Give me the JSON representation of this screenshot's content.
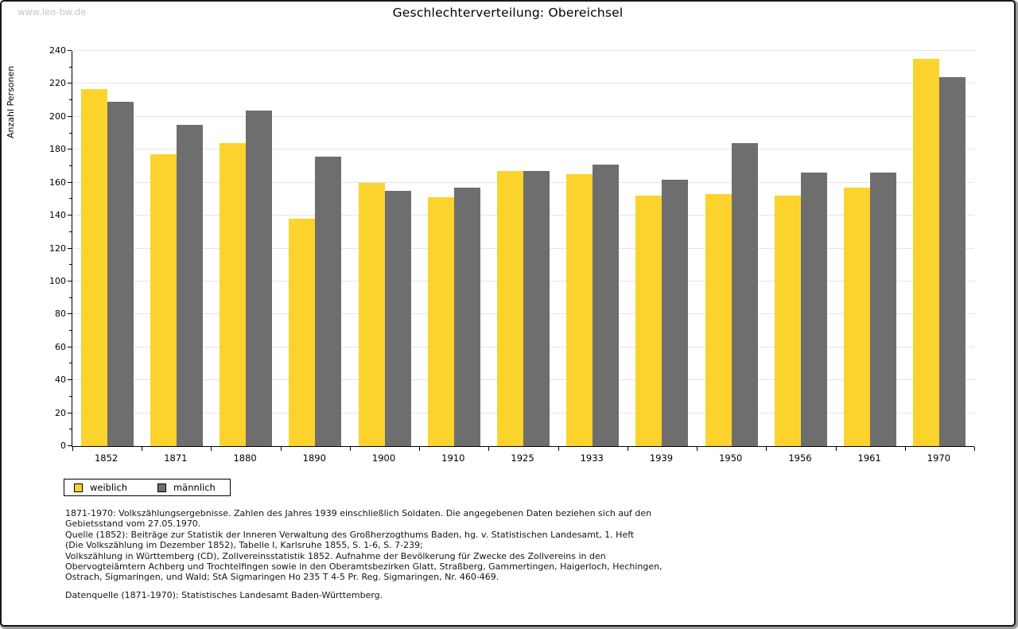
{
  "watermark": "www.leo-bw.de",
  "title": "Geschlechterverteilung: Obereichsel",
  "chart_data": {
    "type": "bar",
    "title": "Geschlechterverteilung: Obereichsel",
    "categories": [
      "1852",
      "1871",
      "1880",
      "1890",
      "1900",
      "1910",
      "1925",
      "1933",
      "1939",
      "1950",
      "1956",
      "1961",
      "1970"
    ],
    "series": [
      {
        "name": "weiblich",
        "color": "#fcd32d",
        "values": [
          217,
          177,
          184,
          138,
          160,
          151,
          167,
          165,
          152,
          153,
          152,
          157,
          235
        ]
      },
      {
        "name": "männlich",
        "color": "#6e6e6e",
        "values": [
          209,
          195,
          204,
          176,
          155,
          157,
          167,
          171,
          162,
          184,
          166,
          166,
          224
        ]
      }
    ],
    "xlabel": "",
    "ylabel": "Anzahl Personen",
    "ylim": [
      0,
      240
    ],
    "ytick_step": 20,
    "yminor_step": 10,
    "grid": true,
    "legend_position": "bottom-left"
  },
  "legend": [
    {
      "label": "weiblich",
      "color": "#fcd32d"
    },
    {
      "label": "männlich",
      "color": "#6e6e6e"
    }
  ],
  "footnotes": [
    "1871-1970: Volkszählungsergebnisse. Zahlen des Jahres 1939 einschließlich Soldaten. Die angegebenen Daten beziehen sich auf den",
    "Gebietsstand vom 27.05.1970.",
    "Quelle (1852): Beiträge zur Statistik der Inneren Verwaltung des Großherzogthums Baden, hg. v. Statistischen Landesamt, 1. Heft",
    "(Die Volkszählung im Dezember 1852), Tabelle I, Karlsruhe 1855, S. 1-6, S. 7-239;",
    "Volkszählung in Württemberg (CD), Zollvereinsstatistik 1852. Aufnahme der Bevölkerung für Zwecke des Zollvereins in den",
    "Obervogteiämtern Achberg und Trochtelfingen sowie in den Oberamtsbezirken Glatt, Straßberg, Gammertingen, Haigerloch, Hechingen,",
    "Ostrach, Sigmaringen, und Wald; StA Sigmaringen Ho 235 T 4-5 Pr. Reg. Sigmaringen, Nr. 460-469."
  ],
  "datasource": "Datenquelle (1871-1970): Statistisches Landesamt Baden-Württemberg."
}
